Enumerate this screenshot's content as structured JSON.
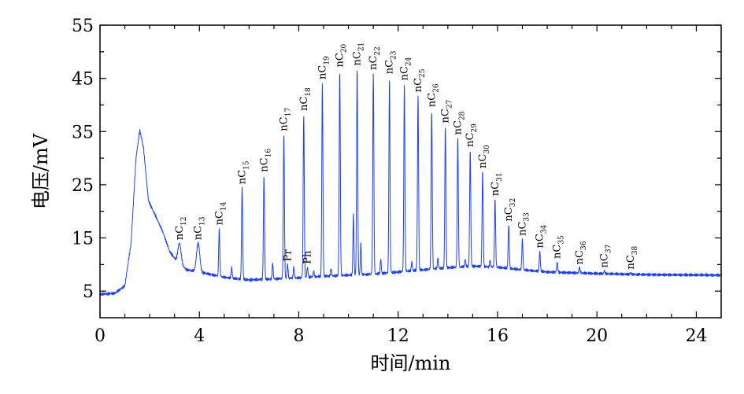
{
  "chart_data": {
    "type": "line",
    "xlabel": "时间/min",
    "ylabel": "电压/mV",
    "xlim": [
      0,
      25
    ],
    "ylim": [
      0,
      55
    ],
    "xticks": [
      0,
      4,
      8,
      12,
      16,
      20,
      24
    ],
    "yticks": [
      5,
      15,
      25,
      35,
      45,
      55
    ],
    "grid": false,
    "legend": "none",
    "color": "#1f3fff",
    "baseline": [
      {
        "x": 0.0,
        "y": 4.4
      },
      {
        "x": 0.6,
        "y": 4.6
      },
      {
        "x": 1.0,
        "y": 6.0
      },
      {
        "x": 1.25,
        "y": 14.0
      },
      {
        "x": 1.45,
        "y": 30.0
      },
      {
        "x": 1.6,
        "y": 35.3
      },
      {
        "x": 1.75,
        "y": 32.0
      },
      {
        "x": 1.95,
        "y": 22.0
      },
      {
        "x": 2.2,
        "y": 19.5
      },
      {
        "x": 2.5,
        "y": 16.5
      },
      {
        "x": 2.8,
        "y": 12.5
      },
      {
        "x": 3.1,
        "y": 10.5
      },
      {
        "x": 3.5,
        "y": 9.0
      },
      {
        "x": 4.0,
        "y": 8.6
      },
      {
        "x": 5.0,
        "y": 7.6
      },
      {
        "x": 6.0,
        "y": 7.1
      },
      {
        "x": 7.0,
        "y": 7.3
      },
      {
        "x": 8.0,
        "y": 7.5
      },
      {
        "x": 9.0,
        "y": 7.8
      },
      {
        "x": 10.0,
        "y": 8.0
      },
      {
        "x": 11.0,
        "y": 8.2
      },
      {
        "x": 12.0,
        "y": 8.6
      },
      {
        "x": 13.0,
        "y": 9.0
      },
      {
        "x": 14.0,
        "y": 9.4
      },
      {
        "x": 15.0,
        "y": 9.7
      },
      {
        "x": 16.0,
        "y": 9.5
      },
      {
        "x": 17.0,
        "y": 9.0
      },
      {
        "x": 18.0,
        "y": 8.6
      },
      {
        "x": 20.0,
        "y": 8.3
      },
      {
        "x": 22.0,
        "y": 8.1
      },
      {
        "x": 25.0,
        "y": 8.0
      }
    ],
    "peaks": [
      {
        "label": "nC",
        "sub": "12",
        "x": 3.2,
        "y": 14.0
      },
      {
        "label": "nC",
        "sub": "13",
        "x": 3.95,
        "y": 14.0
      },
      {
        "label": "nC",
        "sub": "14",
        "x": 4.8,
        "y": 16.8
      },
      {
        "label": "nC",
        "sub": "15",
        "x": 5.72,
        "y": 24.5
      },
      {
        "label": "nC",
        "sub": "16",
        "x": 6.6,
        "y": 26.8
      },
      {
        "label": "nC",
        "sub": "17",
        "x": 7.4,
        "y": 34.5
      },
      {
        "label": "Pr",
        "sub": "",
        "x": 7.55,
        "y": 10.0
      },
      {
        "label": "nC",
        "sub": "18",
        "x": 8.2,
        "y": 38.3
      },
      {
        "label": "Ph",
        "sub": "",
        "x": 8.35,
        "y": 9.5
      },
      {
        "label": "nC",
        "sub": "19",
        "x": 8.95,
        "y": 44.2
      },
      {
        "label": "nC",
        "sub": "20",
        "x": 9.65,
        "y": 46.5
      },
      {
        "label": "nC",
        "sub": "21",
        "x": 10.35,
        "y": 46.8
      },
      {
        "label": "nC",
        "sub": "22",
        "x": 11.0,
        "y": 46.0
      },
      {
        "label": "nC",
        "sub": "23",
        "x": 11.65,
        "y": 45.2
      },
      {
        "label": "nC",
        "sub": "24",
        "x": 12.25,
        "y": 44.0
      },
      {
        "label": "nC",
        "sub": "25",
        "x": 12.8,
        "y": 41.8
      },
      {
        "label": "nC",
        "sub": "26",
        "x": 13.35,
        "y": 39.0
      },
      {
        "label": "nC",
        "sub": "27",
        "x": 13.9,
        "y": 36.0
      },
      {
        "label": "nC",
        "sub": "28",
        "x": 14.4,
        "y": 33.8
      },
      {
        "label": "nC",
        "sub": "29",
        "x": 14.9,
        "y": 31.5
      },
      {
        "label": "nC",
        "sub": "30",
        "x": 15.4,
        "y": 27.5
      },
      {
        "label": "nC",
        "sub": "31",
        "x": 15.9,
        "y": 22.3
      },
      {
        "label": "nC",
        "sub": "32",
        "x": 16.45,
        "y": 17.5
      },
      {
        "label": "nC",
        "sub": "33",
        "x": 17.0,
        "y": 14.8
      },
      {
        "label": "nC",
        "sub": "34",
        "x": 17.7,
        "y": 12.5
      },
      {
        "label": "nC",
        "sub": "35",
        "x": 18.4,
        "y": 10.5
      },
      {
        "label": "nC",
        "sub": "36",
        "x": 19.3,
        "y": 9.4
      },
      {
        "label": "nC",
        "sub": "37",
        "x": 20.3,
        "y": 8.8
      },
      {
        "label": "nC",
        "sub": "38",
        "x": 21.35,
        "y": 8.5
      }
    ],
    "minor_peaks": [
      {
        "x": 5.3,
        "y": 9.5
      },
      {
        "x": 6.95,
        "y": 10.3
      },
      {
        "x": 7.8,
        "y": 9.6
      },
      {
        "x": 8.6,
        "y": 8.8
      },
      {
        "x": 9.3,
        "y": 9.2
      },
      {
        "x": 10.2,
        "y": 19.5
      },
      {
        "x": 10.5,
        "y": 14.0
      },
      {
        "x": 11.3,
        "y": 11.0
      },
      {
        "x": 12.55,
        "y": 10.5
      },
      {
        "x": 13.6,
        "y": 11.3
      },
      {
        "x": 14.7,
        "y": 11.0
      },
      {
        "x": 15.7,
        "y": 10.8
      }
    ]
  }
}
